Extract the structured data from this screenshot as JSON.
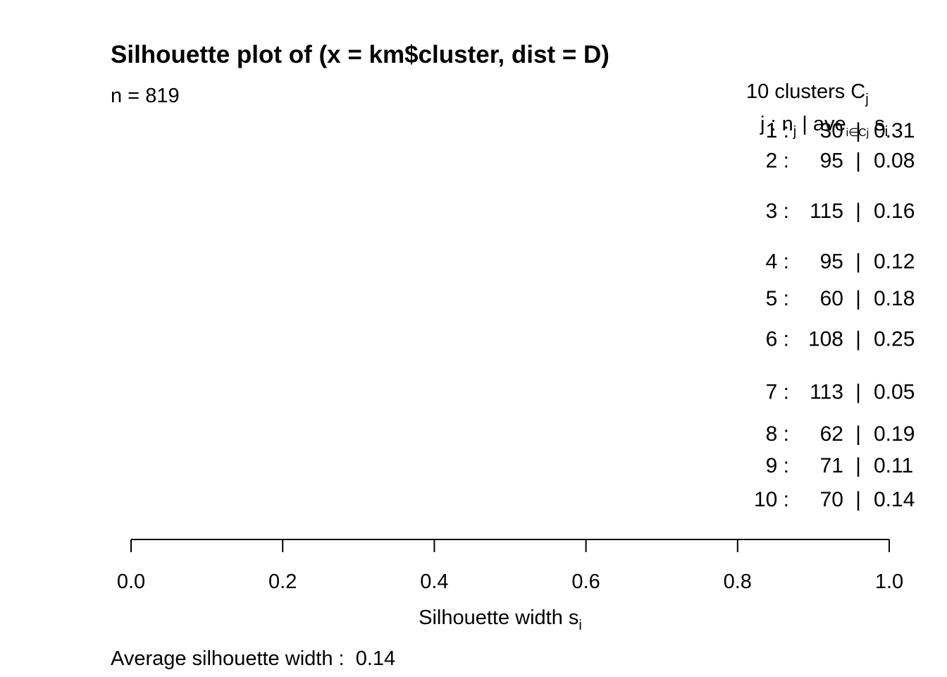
{
  "chart_data": {
    "type": "bar",
    "title": "Silhouette plot of (x = km$cluster, dist = D)",
    "subtitle": {
      "prefix": "n =",
      "n": 819
    },
    "legend_header": {
      "count_label": "10  clusters  C",
      "count_sub": "j",
      "columns_label": "j :  n",
      "columns_sub_n": "j",
      "columns_sep": " | ave",
      "columns_sub_ave": "i∈Cj",
      "columns_s": " s",
      "columns_sub_s": "i"
    },
    "clusters": [
      {
        "j": "1",
        "n": 30,
        "ave": "0.31"
      },
      {
        "j": "2",
        "n": 95,
        "ave": "0.08"
      },
      {
        "j": "3",
        "n": 115,
        "ave": "0.16"
      },
      {
        "j": "4",
        "n": 95,
        "ave": "0.12"
      },
      {
        "j": "5",
        "n": 60,
        "ave": "0.18"
      },
      {
        "j": "6",
        "n": 108,
        "ave": "0.25"
      },
      {
        "j": "7",
        "n": 113,
        "ave": "0.05"
      },
      {
        "j": "8",
        "n": 62,
        "ave": "0.19"
      },
      {
        "j": "9",
        "n": 71,
        "ave": "0.11"
      },
      {
        "j": "10",
        "n": 70,
        "ave": "0.14"
      }
    ],
    "xlim": [
      0,
      1
    ],
    "xticks": [
      "0.0",
      "0.2",
      "0.4",
      "0.6",
      "0.8",
      "1.0"
    ],
    "xlabel": "Silhouette width s",
    "xlabel_sub": "i",
    "average_label": "Average silhouette width :",
    "average_value": "0.14"
  }
}
